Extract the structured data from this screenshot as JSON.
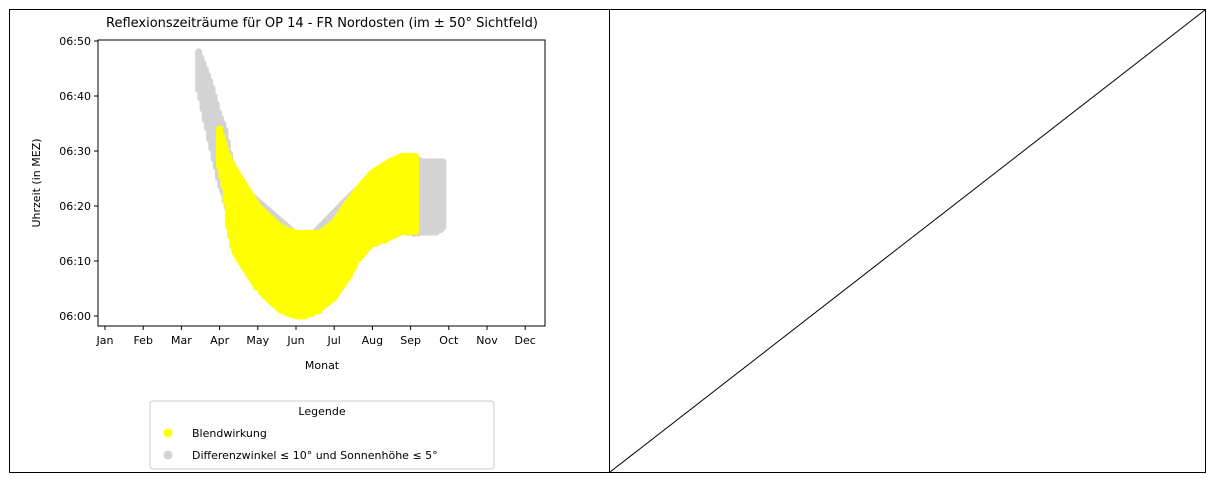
{
  "chart_data": {
    "type": "scatter",
    "title": "Reflexionszeiträume für OP 14 - FR Nordosten (im ± 50° Sichtfeld)",
    "xlabel": "Monat",
    "ylabel": "Uhrzeit (in MEZ)",
    "x_ticks": [
      "Jan",
      "Feb",
      "Mar",
      "Apr",
      "May",
      "Jun",
      "Jul",
      "Aug",
      "Sep",
      "Oct",
      "Nov",
      "Dec"
    ],
    "y_ticks": [
      "06:00",
      "06:10",
      "06:20",
      "06:30",
      "06:40",
      "06:50"
    ],
    "ylim": [
      "05:58",
      "06:50"
    ],
    "grid": false,
    "legend": {
      "title": "Legende",
      "placement": "bottom-center",
      "entries": [
        {
          "label": "Blendwirkung",
          "color": "#ffff00"
        },
        {
          "label": "Differenzwinkel ≤ 10° und Sonnenhöhe ≤ 5°",
          "color": "#d3d3d3"
        }
      ]
    },
    "series": [
      {
        "name": "Differenzwinkel ≤ 10° und Sonnenhöhe ≤ 5°",
        "color": "#d3d3d3",
        "bands": [
          {
            "x": "03-15",
            "low": "06:41",
            "high": "06:48"
          },
          {
            "x": "03-20",
            "low": "06:36",
            "high": "06:45"
          },
          {
            "x": "03-25",
            "low": "06:31",
            "high": "06:42"
          },
          {
            "x": "03-31",
            "low": "06:25",
            "high": "06:37"
          },
          {
            "x": "04-05",
            "low": "06:21",
            "high": "06:34"
          },
          {
            "x": "04-10",
            "low": "06:17",
            "high": "06:28"
          },
          {
            "x": "04-15",
            "low": "06:13",
            "high": "06:24"
          },
          {
            "x": "05-31",
            "low": "06:00",
            "high": "06:15"
          },
          {
            "x": "06-15",
            "low": "06:01",
            "high": "06:15"
          },
          {
            "x": "07-15",
            "low": "06:10",
            "high": "06:22"
          },
          {
            "x": "08-15",
            "low": "06:16",
            "high": "06:28"
          },
          {
            "x": "09-01",
            "low": "06:15",
            "high": "06:29"
          },
          {
            "x": "09-10",
            "low": "06:15",
            "high": "06:28"
          },
          {
            "x": "09-20",
            "low": "06:15",
            "high": "06:28"
          },
          {
            "x": "09-28",
            "low": "06:16",
            "high": "06:28"
          }
        ]
      },
      {
        "name": "Blendwirkung",
        "color": "#ffff00",
        "bands": [
          {
            "x": "04-01",
            "low": "06:27",
            "high": "06:34"
          },
          {
            "x": "04-05",
            "low": "06:23",
            "high": "06:31"
          },
          {
            "x": "04-08",
            "low": "06:16",
            "high": "06:29"
          },
          {
            "x": "04-12",
            "low": "06:12",
            "high": "06:27"
          },
          {
            "x": "04-20",
            "low": "06:09",
            "high": "06:24"
          },
          {
            "x": "05-01",
            "low": "06:05",
            "high": "06:20"
          },
          {
            "x": "05-10",
            "low": "06:03",
            "high": "06:18"
          },
          {
            "x": "05-20",
            "low": "06:01",
            "high": "06:16"
          },
          {
            "x": "06-01",
            "low": "06:00",
            "high": "06:15"
          },
          {
            "x": "06-10",
            "low": "06:00",
            "high": "06:15"
          },
          {
            "x": "06-20",
            "low": "06:01",
            "high": "06:15"
          },
          {
            "x": "07-01",
            "low": "06:03",
            "high": "06:17"
          },
          {
            "x": "07-10",
            "low": "06:06",
            "high": "06:20"
          },
          {
            "x": "07-20",
            "low": "06:10",
            "high": "06:23"
          },
          {
            "x": "08-01",
            "low": "06:13",
            "high": "06:26"
          },
          {
            "x": "08-15",
            "low": "06:14",
            "high": "06:28"
          },
          {
            "x": "08-25",
            "low": "06:15",
            "high": "06:29"
          },
          {
            "x": "09-05",
            "low": "06:15",
            "high": "06:29"
          }
        ]
      }
    ]
  }
}
